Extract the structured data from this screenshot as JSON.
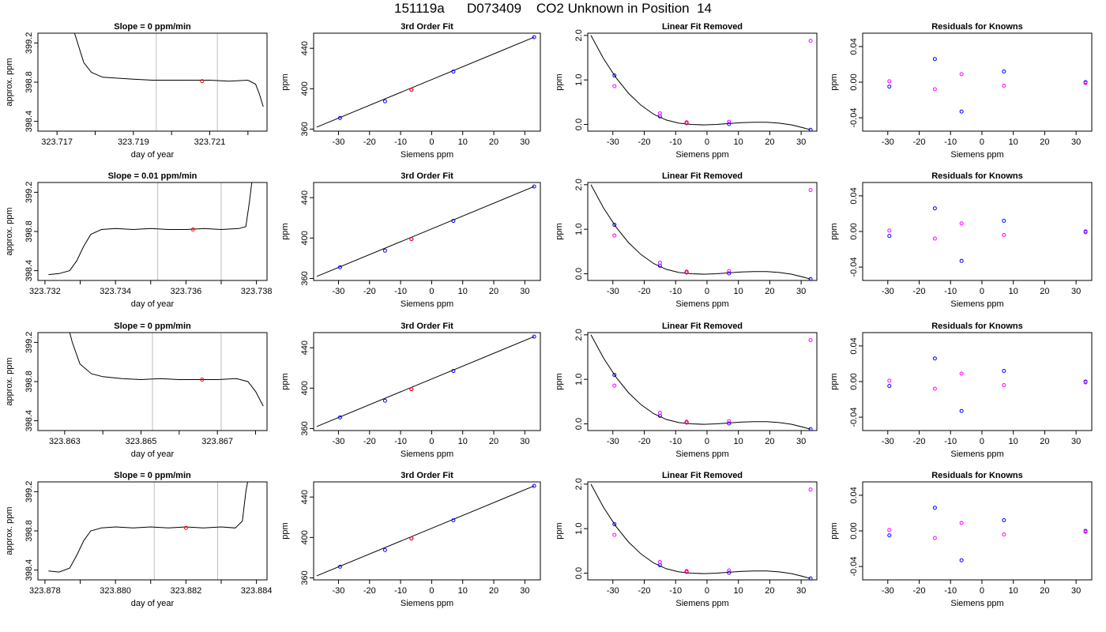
{
  "title": "151119a      D073409    CO2 Unknown in Position  14",
  "colors": {
    "line": "#000000",
    "point_blue": "#0000ff",
    "point_magenta": "#ff00ff",
    "point_red": "#ff0000",
    "vline": "#bebebe"
  },
  "labels": {
    "day_of_year": "day of year",
    "approx_ppm": "approx. ppm",
    "siemens_ppm": "Siemens ppm",
    "ppm": "ppm",
    "fit": "3rd Order Fit",
    "linfit": "Linear Fit Removed",
    "resid": "Residuals for Knowns"
  },
  "chart_data": {
    "type": "scatter",
    "rows": [
      {
        "slope_title": "Slope =  0  ppm/min",
        "time_xlim": [
          323.7165,
          323.7225
        ],
        "time_ticks": [
          "323.717",
          "323.719",
          "323.721"
        ],
        "time_tick_vals": [
          323.717,
          323.719,
          323.721
        ],
        "minor_ticks": [
          323.718,
          323.72,
          323.722
        ],
        "vlines": [
          323.7196,
          323.7212
        ],
        "red_point": [
          323.7208,
          398.81
        ],
        "trace": [
          [
            323.7173,
            399.5
          ],
          [
            323.7175,
            399.25
          ],
          [
            323.7177,
            399.0
          ],
          [
            323.7179,
            398.9
          ],
          [
            323.7182,
            398.85
          ],
          [
            323.7186,
            398.84
          ],
          [
            323.719,
            398.83
          ],
          [
            323.7195,
            398.82
          ],
          [
            323.72,
            398.82
          ],
          [
            323.7205,
            398.82
          ],
          [
            323.721,
            398.82
          ],
          [
            323.7215,
            398.81
          ],
          [
            323.722,
            398.82
          ],
          [
            323.7222,
            398.78
          ],
          [
            323.7223,
            398.68
          ],
          [
            323.7224,
            398.55
          ]
        ]
      },
      {
        "slope_title": "Slope =  0.01  ppm/min",
        "time_xlim": [
          323.7318,
          323.7383
        ],
        "time_ticks": [
          "323.732",
          "323.734",
          "323.736",
          "323.738"
        ],
        "time_tick_vals": [
          323.732,
          323.734,
          323.736,
          323.738
        ],
        "minor_ticks": [
          323.733,
          323.735,
          323.737
        ],
        "vlines": [
          323.7352,
          323.737
        ],
        "red_point": [
          323.7362,
          398.82
        ],
        "trace": [
          [
            323.7321,
            398.36
          ],
          [
            323.7324,
            398.37
          ],
          [
            323.7327,
            398.4
          ],
          [
            323.7329,
            398.5
          ],
          [
            323.7331,
            398.65
          ],
          [
            323.7333,
            398.77
          ],
          [
            323.7336,
            398.82
          ],
          [
            323.734,
            398.83
          ],
          [
            323.7345,
            398.82
          ],
          [
            323.735,
            398.83
          ],
          [
            323.7355,
            398.82
          ],
          [
            323.736,
            398.82
          ],
          [
            323.7365,
            398.83
          ],
          [
            323.737,
            398.82
          ],
          [
            323.7375,
            398.83
          ],
          [
            323.7377,
            398.85
          ],
          [
            323.7378,
            399.1
          ],
          [
            323.7379,
            399.4
          ]
        ]
      },
      {
        "slope_title": "Slope =  0  ppm/min",
        "time_xlim": [
          323.8623,
          323.8683
        ],
        "time_ticks": [
          "323.863",
          "323.865",
          "323.867"
        ],
        "time_tick_vals": [
          323.863,
          323.865,
          323.867
        ],
        "minor_ticks": [
          323.864,
          323.866,
          323.868
        ],
        "vlines": [
          323.8653,
          323.8671
        ],
        "red_point": [
          323.8666,
          398.82
        ],
        "trace": [
          [
            323.863,
            399.5
          ],
          [
            323.8632,
            399.2
          ],
          [
            323.8634,
            398.98
          ],
          [
            323.8637,
            398.88
          ],
          [
            323.864,
            398.85
          ],
          [
            323.8645,
            398.83
          ],
          [
            323.865,
            398.82
          ],
          [
            323.8655,
            398.83
          ],
          [
            323.866,
            398.82
          ],
          [
            323.8665,
            398.82
          ],
          [
            323.867,
            398.82
          ],
          [
            323.8675,
            398.83
          ],
          [
            323.8678,
            398.8
          ],
          [
            323.868,
            398.7
          ],
          [
            323.8682,
            398.55
          ]
        ]
      },
      {
        "slope_title": "Slope =  0  ppm/min",
        "time_xlim": [
          323.8778,
          323.8843
        ],
        "time_ticks": [
          "323.878",
          "323.880",
          "323.882",
          "323.884"
        ],
        "time_tick_vals": [
          323.878,
          323.88,
          323.882,
          323.884
        ],
        "minor_ticks": [
          323.879,
          323.881,
          323.883
        ],
        "vlines": [
          323.8811,
          323.8829
        ],
        "red_point": [
          323.882,
          398.83
        ],
        "trace": [
          [
            323.8781,
            398.39
          ],
          [
            323.8784,
            398.38
          ],
          [
            323.8787,
            398.42
          ],
          [
            323.8789,
            398.55
          ],
          [
            323.8791,
            398.7
          ],
          [
            323.8793,
            398.8
          ],
          [
            323.8796,
            398.83
          ],
          [
            323.88,
            398.84
          ],
          [
            323.8805,
            398.83
          ],
          [
            323.881,
            398.84
          ],
          [
            323.8815,
            398.83
          ],
          [
            323.882,
            398.84
          ],
          [
            323.8825,
            398.83
          ],
          [
            323.883,
            398.84
          ],
          [
            323.8834,
            398.83
          ],
          [
            323.8836,
            398.9
          ],
          [
            323.8837,
            399.2
          ],
          [
            323.8838,
            399.4
          ]
        ]
      }
    ],
    "time_ylim": [
      398.3,
      399.3
    ],
    "time_yticks": [
      "398.4",
      "398.8",
      "399.2"
    ],
    "time_ytick_vals": [
      398.4,
      398.8,
      399.2
    ],
    "siemens_xlim": [
      -38,
      35
    ],
    "siemens_xticks": [
      "-30",
      "-20",
      "-10",
      "0",
      "10",
      "20",
      "30"
    ],
    "siemens_xtick_vals": [
      -30,
      -20,
      -10,
      0,
      10,
      20,
      30
    ],
    "resid_xticks": [
      "-30",
      "-20",
      "-10",
      "0",
      "10",
      "20",
      "30"
    ],
    "fit_ylim": [
      358,
      455
    ],
    "fit_yticks": [
      "360",
      "400",
      "440"
    ],
    "fit_ytick_vals": [
      360,
      400,
      440
    ],
    "fit_points": [
      [
        -29.5,
        371
      ],
      [
        -15,
        387.5
      ],
      [
        -6.5,
        399
      ],
      [
        7,
        417
      ],
      [
        33,
        451
      ]
    ],
    "fit_line": [
      [
        -37,
        362
      ],
      [
        33,
        451
      ]
    ],
    "linfit_ylim": [
      -0.15,
      2.05
    ],
    "linfit_yticks": [
      "0.0",
      "1.0",
      "2.0"
    ],
    "linfit_ytick_vals": [
      0.0,
      1.0,
      2.0
    ],
    "linfit_blue": [
      [
        -29.5,
        1.1
      ],
      [
        -15,
        0.18
      ],
      [
        -6.5,
        0.03
      ],
      [
        7,
        0.01
      ],
      [
        33,
        -0.12
      ]
    ],
    "linfit_magenta": [
      [
        -29.5,
        0.86
      ],
      [
        -15,
        0.25
      ],
      [
        -6.5,
        0.05
      ],
      [
        7,
        0.06
      ],
      [
        33,
        1.88
      ]
    ],
    "linfit_red": [
      [
        -6.5,
        0.03
      ]
    ],
    "linfit_curve": [
      [
        -37,
        2.0
      ],
      [
        -33,
        1.48
      ],
      [
        -29,
        1.05
      ],
      [
        -25,
        0.7
      ],
      [
        -21,
        0.43
      ],
      [
        -17,
        0.23
      ],
      [
        -13,
        0.1
      ],
      [
        -9,
        0.03
      ],
      [
        -5,
        0.0
      ],
      [
        -1,
        -0.01
      ],
      [
        3,
        0.0
      ],
      [
        7,
        0.02
      ],
      [
        11,
        0.04
      ],
      [
        15,
        0.05
      ],
      [
        19,
        0.05
      ],
      [
        23,
        0.03
      ],
      [
        27,
        -0.01
      ],
      [
        31,
        -0.08
      ],
      [
        33,
        -0.12
      ]
    ],
    "resid_ylim": [
      -0.055,
      0.055
    ],
    "resid_yticks": [
      "-0.04",
      "0.00",
      "0.04"
    ],
    "resid_ytick_vals": [
      -0.04,
      0.0,
      0.04
    ],
    "resid_blue": [
      [
        -29.5,
        -0.005
      ],
      [
        -15,
        0.026
      ],
      [
        -6.5,
        -0.033
      ],
      [
        7,
        0.012
      ],
      [
        33,
        0.0
      ]
    ],
    "resid_magenta": [
      [
        -29.5,
        0.001
      ],
      [
        -15,
        -0.008
      ],
      [
        -6.5,
        0.009
      ],
      [
        7,
        -0.004
      ],
      [
        33,
        -0.001
      ]
    ]
  }
}
